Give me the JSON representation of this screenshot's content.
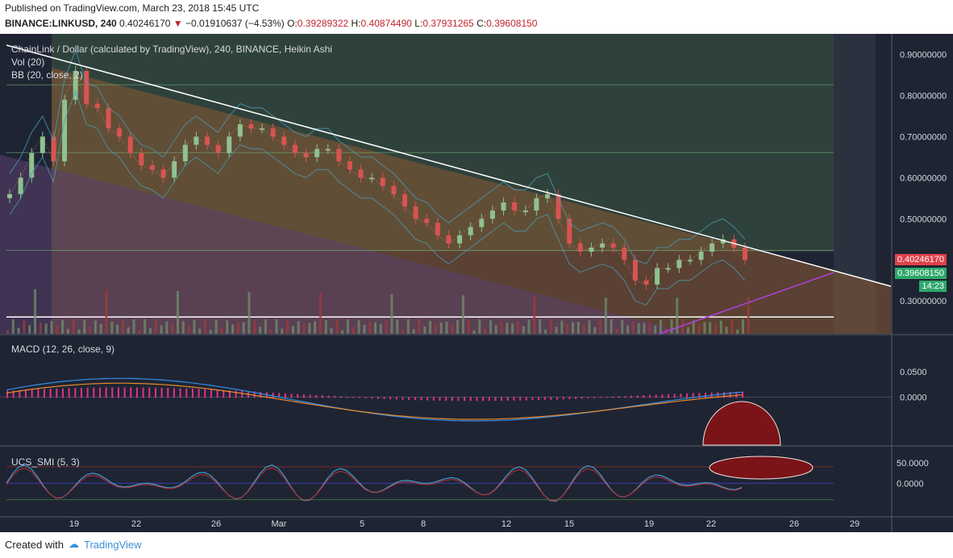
{
  "header": {
    "published": "Published on TradingView.com, March 23, 2018 15:45 UTC",
    "symbol": "BINANCE:LINKUSD, 240",
    "last": "0.40246170",
    "change": "−0.01910637 (−4.53%)",
    "o_label": "O:",
    "o": "0.39289322",
    "h_label": "H:",
    "h": "0.40874490",
    "l_label": "L:",
    "l": "0.37931265",
    "c_label": "C:",
    "c": "0.39608150"
  },
  "legend": {
    "title": "ChainLink / Dollar (calculated by TradingView), 240, BINANCE, Heikin Ashi",
    "vol": "Vol (20)",
    "bb": "BB (20, close, 2)",
    "macd": "MACD (12, 26, close, 9)",
    "smi": "UCS_SMI (5, 3)"
  },
  "price_tags": {
    "last": "0.40246170",
    "close": "0.39608150",
    "timer": "14:23"
  },
  "colors": {
    "bg": "#1f2433",
    "up": "#8fc28f",
    "down": "#d9534f",
    "tag_red": "#e0414a",
    "tag_green": "#2ea86a"
  },
  "footer": {
    "created": "Created with",
    "brand": "TradingView"
  },
  "chart_data": [
    {
      "type": "candlestick",
      "title": "ChainLink / Dollar (calculated by TradingView), 240, BINANCE, Heikin Ashi",
      "x_ticks": [
        "19",
        "22",
        "26",
        "Mar",
        "5",
        "8",
        "12",
        "15",
        "19",
        "22",
        "26",
        "29"
      ],
      "y_ticks": [
        "0.90000000",
        "0.80000000",
        "0.70000000",
        "0.60000000",
        "0.50000000",
        "0.30000000"
      ],
      "ylim": [
        0.22,
        0.95
      ],
      "series_close": [
        0.56,
        0.6,
        0.66,
        0.7,
        0.64,
        0.79,
        0.86,
        0.78,
        0.77,
        0.72,
        0.7,
        0.66,
        0.63,
        0.62,
        0.6,
        0.64,
        0.68,
        0.7,
        0.68,
        0.66,
        0.7,
        0.73,
        0.72,
        0.72,
        0.7,
        0.68,
        0.66,
        0.65,
        0.67,
        0.67,
        0.64,
        0.62,
        0.6,
        0.6,
        0.58,
        0.56,
        0.53,
        0.5,
        0.49,
        0.46,
        0.44,
        0.46,
        0.48,
        0.5,
        0.52,
        0.54,
        0.52,
        0.52,
        0.55,
        0.56,
        0.5,
        0.44,
        0.42,
        0.43,
        0.44,
        0.43,
        0.4,
        0.35,
        0.34,
        0.38,
        0.38,
        0.4,
        0.4,
        0.42,
        0.44,
        0.45,
        0.43,
        0.4
      ],
      "horizontal_levels": [
        0.826,
        0.661,
        0.423,
        0.261
      ]
    },
    {
      "type": "line",
      "title": "MACD (12, 26, close, 9)",
      "y_ticks": [
        "0.0500",
        "0.0000"
      ],
      "ylim": [
        -0.095,
        0.12
      ]
    },
    {
      "type": "line",
      "title": "UCS_SMI (5, 3)",
      "y_ticks": [
        "50.0000",
        "0.0000"
      ],
      "ylim": [
        -80,
        85
      ]
    }
  ]
}
